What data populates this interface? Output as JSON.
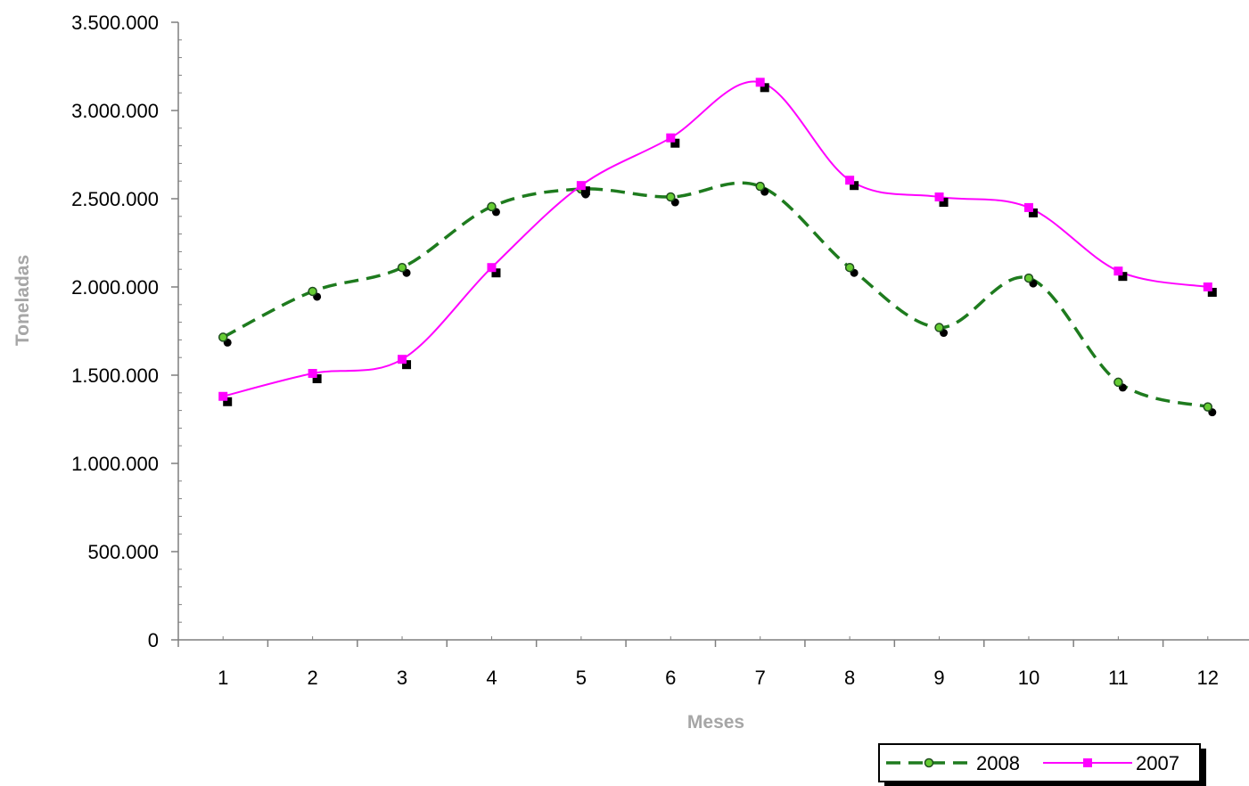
{
  "chart_data": {
    "type": "line",
    "xlabel": "Meses",
    "ylabel": "Toneladas",
    "categories": [
      "1",
      "2",
      "3",
      "4",
      "5",
      "6",
      "7",
      "8",
      "9",
      "10",
      "11",
      "12"
    ],
    "ylim": [
      0,
      3500000
    ],
    "y_ticks": [
      0,
      500000,
      1000000,
      1500000,
      2000000,
      2500000,
      3000000,
      3500000
    ],
    "y_tick_labels": [
      "0",
      "500.000",
      "1.000.000",
      "1.500.000",
      "2.000.000",
      "2.500.000",
      "3.000.000",
      "3.500.000"
    ],
    "grid": false,
    "legend_position": "bottom-right",
    "series": [
      {
        "name": "2008",
        "color": "#1e7b1e",
        "marker_fill": "#66cc33",
        "line_style": "dashed",
        "marker": "circle",
        "values": [
          1715000,
          1975000,
          2110000,
          2455000,
          2555000,
          2510000,
          2570000,
          2110000,
          1770000,
          2050000,
          1460000,
          1320000
        ]
      },
      {
        "name": "2007",
        "color": "#ff00ff",
        "marker_fill": "#ff00ff",
        "line_style": "solid",
        "marker": "square",
        "values": [
          1380000,
          1510000,
          1590000,
          2110000,
          2575000,
          2845000,
          3160000,
          2605000,
          2510000,
          2450000,
          2090000,
          2000000
        ]
      }
    ]
  }
}
